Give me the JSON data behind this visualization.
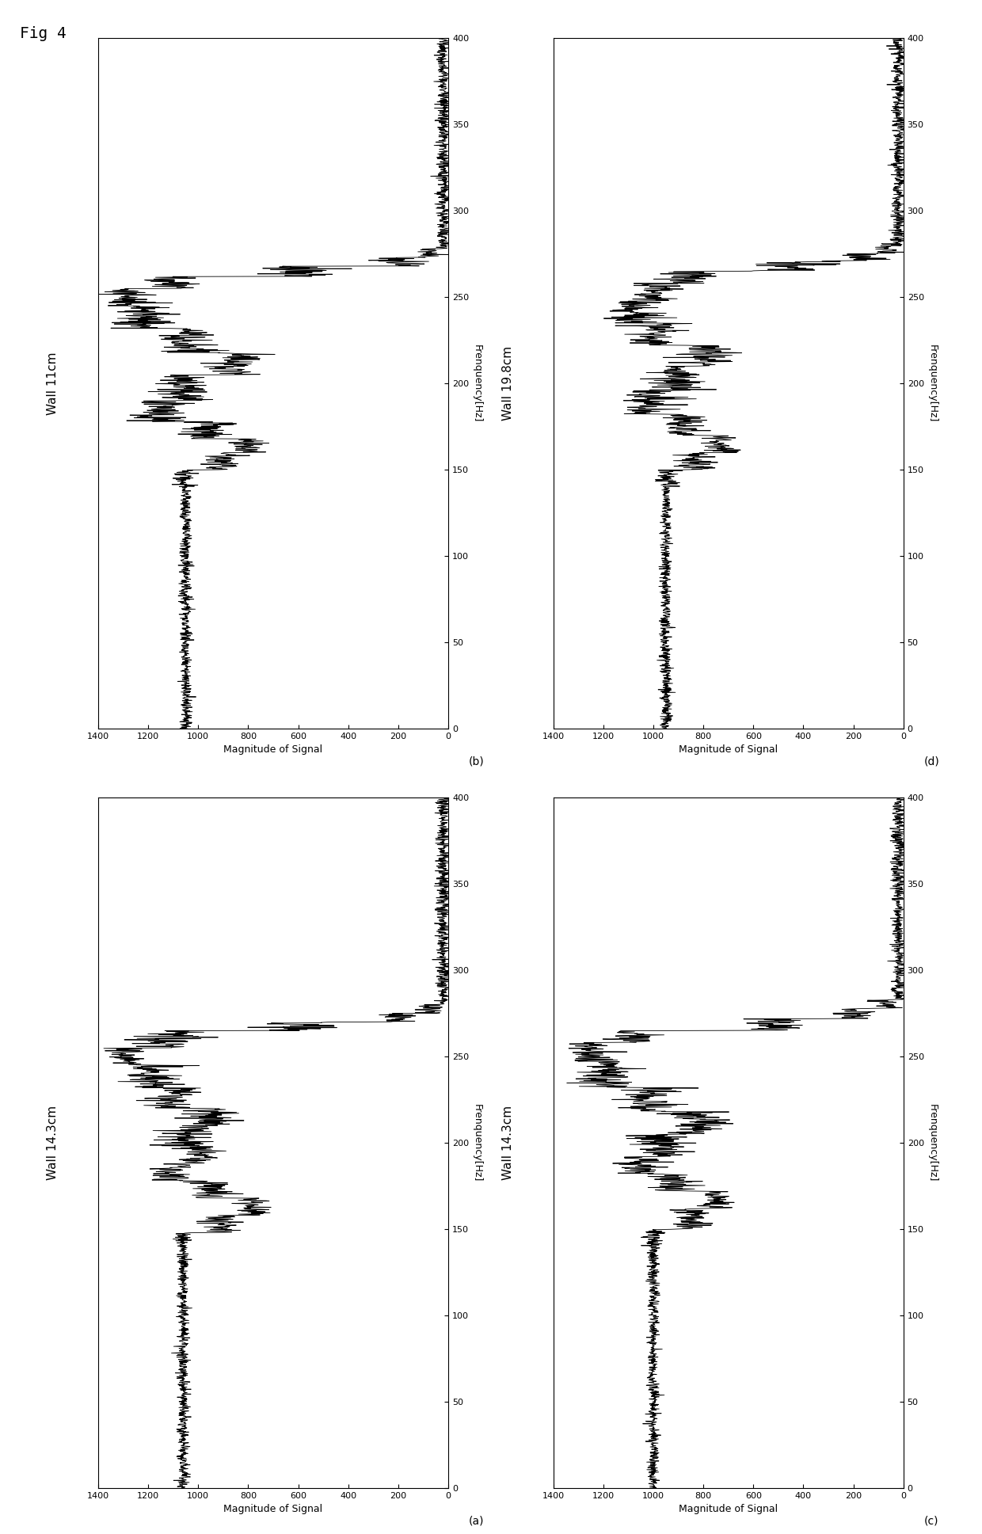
{
  "fig_title": "Fig 4",
  "fig_title_font": 14,
  "fig_title_family": "monospace",
  "freq_ticks": [
    0,
    50,
    100,
    150,
    200,
    250,
    300,
    350,
    400
  ],
  "mag_ticks": [
    0,
    200,
    400,
    600,
    800,
    1000,
    1200,
    1400
  ],
  "xlabel_freq": "Frenquency[Hz]",
  "ylabel_mag": "Magnitude of Signal",
  "subplots": [
    {
      "key": "b",
      "panel": "(b)",
      "wall": "Wall 11cm",
      "row": 0,
      "col": 0
    },
    {
      "key": "d",
      "panel": "(d)",
      "wall": "Wall 19.8cm",
      "row": 0,
      "col": 1
    },
    {
      "key": "a",
      "panel": "(a)",
      "wall": "Wall 14.3cm",
      "row": 1,
      "col": 0
    },
    {
      "key": "c",
      "panel": "(c)",
      "wall": "Wall 14.3cm",
      "row": 1,
      "col": 1
    }
  ],
  "bg": "#ffffff",
  "lc": "#000000"
}
